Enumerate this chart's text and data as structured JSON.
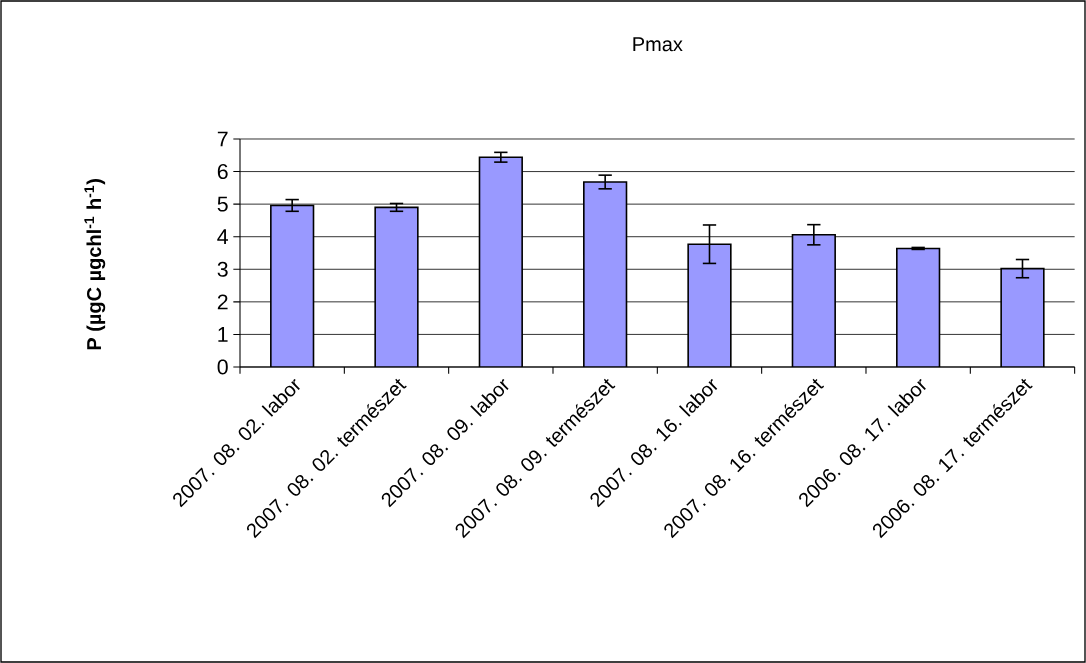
{
  "chart_data": {
    "type": "bar",
    "title": "Pmax",
    "ylabel": "P (µgC µgchl$^{-1}$ h$^{-1}$)",
    "categories": [
      "2007. 08. 02. labor",
      "2007. 08. 02. természet",
      "2007. 08. 09. labor",
      "2007. 08. 09. természet",
      "2007. 08. 16. labor",
      "2007. 08. 16. természet",
      "2006. 08. 17. labor",
      "2006. 08. 17. természet"
    ],
    "values": [
      4.96,
      4.9,
      6.44,
      5.68,
      3.77,
      4.06,
      3.64,
      3.02
    ],
    "errors": [
      0.18,
      0.12,
      0.15,
      0.21,
      0.59,
      0.31,
      0.03,
      0.28
    ],
    "color": "#9999ff",
    "ylim": [
      0,
      7
    ],
    "yticks": [
      0,
      1,
      2,
      3,
      4,
      5,
      6,
      7
    ],
    "grid": "y"
  }
}
